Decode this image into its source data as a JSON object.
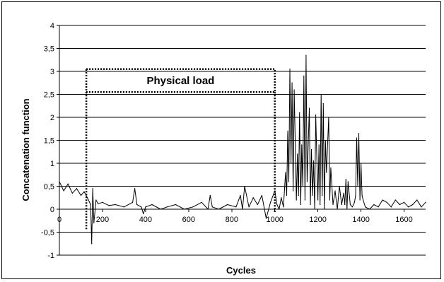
{
  "chart_data": {
    "type": "line",
    "title": "",
    "xlabel": "Cycles",
    "ylabel": "Concatenation function",
    "xlim": [
      0,
      1700
    ],
    "ylim": [
      -1,
      4
    ],
    "x_ticks": [
      0,
      200,
      400,
      600,
      800,
      1000,
      1200,
      1400,
      1600
    ],
    "x_tick_labels": [
      "0",
      "200",
      "400",
      "600",
      "800",
      "1000",
      "1200",
      "1400",
      "1600"
    ],
    "y_ticks": [
      -1,
      -0.5,
      0,
      0.5,
      1,
      1.5,
      2,
      2.5,
      3,
      3.5,
      4
    ],
    "y_tick_labels": [
      "-1",
      "-0,5",
      "0",
      "0,5",
      "1",
      "1,5",
      "2",
      "2,5",
      "3",
      "3,5",
      "4"
    ],
    "grid": "horizontal",
    "legend": "none",
    "line_color": "#000000",
    "series": [
      {
        "x": [
          0,
          20,
          40,
          60,
          80,
          100,
          115,
          130,
          145,
          150,
          155,
          160,
          170,
          180,
          200,
          230,
          260,
          300,
          340,
          350,
          360,
          380,
          390,
          400,
          430,
          470,
          500,
          540,
          580,
          620,
          660,
          690,
          700,
          710,
          740,
          780,
          820,
          840,
          850,
          860,
          880,
          900,
          920,
          940,
          960,
          980,
          1000,
          1010,
          1020,
          1030,
          1040,
          1050,
          1055,
          1060,
          1065,
          1070,
          1075,
          1080,
          1085,
          1090,
          1100,
          1105,
          1110,
          1115,
          1120,
          1125,
          1130,
          1135,
          1140,
          1145,
          1150,
          1160,
          1165,
          1170,
          1175,
          1180,
          1185,
          1190,
          1200,
          1205,
          1210,
          1215,
          1220,
          1225,
          1230,
          1235,
          1240,
          1250,
          1255,
          1260,
          1270,
          1280,
          1290,
          1300,
          1310,
          1320,
          1325,
          1330,
          1335,
          1340,
          1350,
          1360,
          1370,
          1375,
          1380,
          1385,
          1390,
          1395,
          1400,
          1405,
          1410,
          1420,
          1440,
          1460,
          1480,
          1500,
          1520,
          1540,
          1560,
          1580,
          1600,
          1620,
          1640,
          1660,
          1680,
          1700
        ],
        "values": [
          0.6,
          0.4,
          0.55,
          0.35,
          0.45,
          0.3,
          0.38,
          0.25,
          0.1,
          -0.75,
          0.45,
          -0.3,
          0.2,
          0.12,
          0.15,
          0.08,
          0.1,
          0.05,
          0.15,
          0.45,
          0.1,
          0.05,
          -0.1,
          0.05,
          0.1,
          0.0,
          0.05,
          0.1,
          0.0,
          0.05,
          0.15,
          0.0,
          0.3,
          0.05,
          0.0,
          0.1,
          0.05,
          0.3,
          0.0,
          0.5,
          0.05,
          0.25,
          0.1,
          0.3,
          -0.2,
          0.15,
          0.4,
          0.1,
          0.0,
          0.25,
          0.05,
          0.8,
          0.3,
          1.7,
          0.6,
          3.05,
          1.0,
          2.75,
          0.4,
          2.6,
          0.2,
          1.2,
          0.3,
          2.1,
          0.1,
          1.4,
          0.5,
          2.9,
          0.2,
          3.35,
          0.6,
          2.2,
          0.1,
          1.3,
          0.3,
          1.05,
          0.0,
          2.05,
          0.2,
          1.4,
          0.1,
          2.5,
          0.3,
          2.3,
          0.0,
          1.5,
          0.8,
          2.0,
          0.2,
          0.9,
          0.1,
          0.4,
          0.0,
          0.5,
          0.1,
          0.35,
          0.1,
          0.65,
          0.0,
          0.6,
          0.1,
          0.05,
          0.15,
          0.3,
          1.55,
          0.5,
          1.65,
          0.2,
          1.0,
          0.3,
          0.2,
          0.05,
          0.0,
          0.1,
          0.05,
          0.2,
          0.15,
          0.05,
          0.2,
          0.1,
          0.15,
          0.05,
          0.1,
          0.2,
          0.05,
          0.15
        ]
      }
    ],
    "annotations": [
      {
        "text": "Physical load",
        "type": "dotted-region",
        "x_range": [
          125,
          1000
        ],
        "y_range": [
          -0.45,
          3.05
        ],
        "label_y_range": [
          2.55,
          3.05
        ]
      }
    ]
  }
}
